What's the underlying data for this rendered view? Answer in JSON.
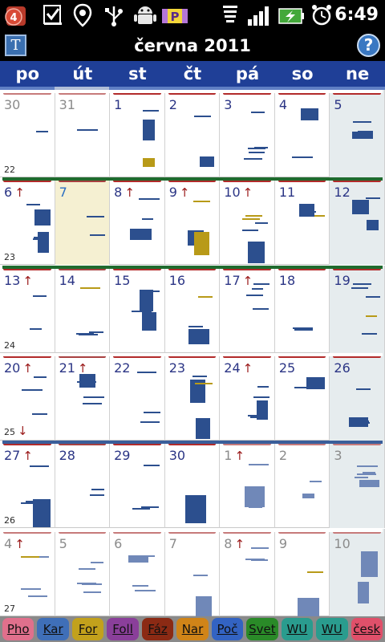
{
  "statusbar": {
    "notification_count": "4",
    "time": "6:49",
    "icons": [
      "notification-badge-icon",
      "checkbox-icon",
      "location-pin-icon",
      "usb-icon",
      "android-icon",
      "parking-app-icon",
      "wifi-icon",
      "signal-icon",
      "battery-charging-icon",
      "alarm-icon"
    ]
  },
  "title": {
    "text": "června 2011",
    "today_label": "T",
    "help_label": "?"
  },
  "weekdays": [
    "po",
    "út",
    "st",
    "čt",
    "pá",
    "so",
    "ne"
  ],
  "weeks": [
    {
      "week_number": "22",
      "rule_color": "#ffffff",
      "days": [
        {
          "label": "30",
          "other": true
        },
        {
          "label": "31",
          "other": true
        },
        {
          "label": "1"
        },
        {
          "label": "2"
        },
        {
          "label": "3"
        },
        {
          "label": "4"
        },
        {
          "label": "5",
          "weekend": true
        }
      ]
    },
    {
      "week_number": "23",
      "rule_color": "#1f6b2e",
      "days": [
        {
          "label": "6",
          "arrow": "↑"
        },
        {
          "label": "7",
          "selected": true
        },
        {
          "label": "8",
          "arrow": "↑"
        },
        {
          "label": "9",
          "arrow": "↑"
        },
        {
          "label": "10",
          "arrow": "↑"
        },
        {
          "label": "11"
        },
        {
          "label": "12",
          "weekend": true
        }
      ]
    },
    {
      "week_number": "24",
      "rule_color": "#1f6b2e",
      "days": [
        {
          "label": "13",
          "arrow": "↑"
        },
        {
          "label": "14"
        },
        {
          "label": "15"
        },
        {
          "label": "16"
        },
        {
          "label": "17",
          "arrow": "↑"
        },
        {
          "label": "18"
        },
        {
          "label": "19",
          "weekend": true
        }
      ]
    },
    {
      "week_number": "25",
      "week_arrow": "↓",
      "rule_color": "#ffffff",
      "days": [
        {
          "label": "20",
          "arrow": "↑"
        },
        {
          "label": "21",
          "arrow": "↑"
        },
        {
          "label": "22"
        },
        {
          "label": "23"
        },
        {
          "label": "24",
          "arrow": "↑"
        },
        {
          "label": "25"
        },
        {
          "label": "26",
          "weekend": true
        }
      ]
    },
    {
      "week_number": "26",
      "rule_color": "#3a5e9a",
      "days": [
        {
          "label": "27",
          "arrow": "↑"
        },
        {
          "label": "28"
        },
        {
          "label": "29"
        },
        {
          "label": "30"
        },
        {
          "label": "1",
          "arrow": "↑",
          "other": true
        },
        {
          "label": "2",
          "other": true
        },
        {
          "label": "3",
          "other": true,
          "weekend": true
        }
      ]
    },
    {
      "week_number": "27",
      "rule_color": "#ffffff",
      "days": [
        {
          "label": "4",
          "arrow": "↑",
          "other": true
        },
        {
          "label": "5",
          "other": true
        },
        {
          "label": "6",
          "other": true
        },
        {
          "label": "7",
          "other": true
        },
        {
          "label": "8",
          "arrow": "↑",
          "other": true
        },
        {
          "label": "9",
          "other": true
        },
        {
          "label": "10",
          "other": true,
          "weekend": true
        }
      ]
    }
  ],
  "footer": [
    {
      "label": "Pho",
      "color": "#e0708c"
    },
    {
      "label": "Kar",
      "color": "#3f6fb8"
    },
    {
      "label": "For",
      "color": "#c2a11c"
    },
    {
      "label": "Foll",
      "color": "#8a3f9a"
    },
    {
      "label": "Fáz",
      "color": "#8b2a14"
    },
    {
      "label": "Nar",
      "color": "#d08418"
    },
    {
      "label": "Poč",
      "color": "#3363c2"
    },
    {
      "label": "Svet",
      "color": "#2a8a28"
    },
    {
      "label": "WU",
      "color": "#2a9c8e"
    },
    {
      "label": "WU",
      "color": "#2a9c8e"
    },
    {
      "label": "česk",
      "color": "#e0506a"
    }
  ]
}
